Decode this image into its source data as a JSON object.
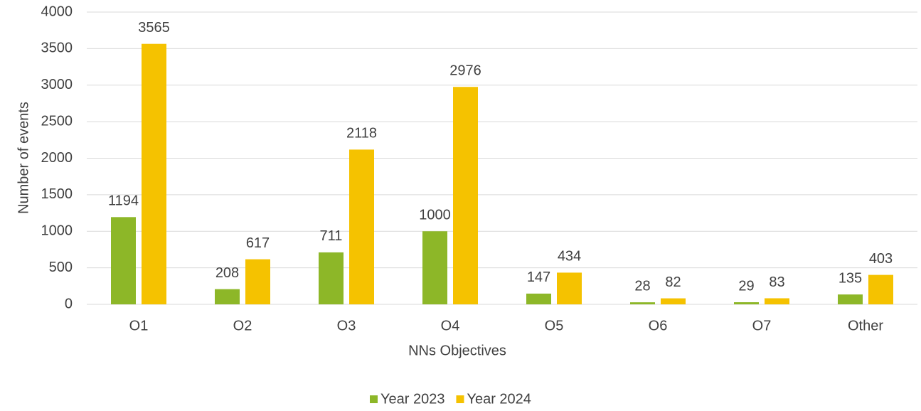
{
  "chart_data": {
    "type": "bar",
    "x_label": "NNs Objectives",
    "y_label": "Number of events",
    "categories": [
      "O1",
      "O2",
      "O3",
      "O4",
      "O5",
      "O6",
      "O7",
      "Other"
    ],
    "series": [
      {
        "name": "Year 2023",
        "color": "#8db728",
        "values": [
          1194,
          208,
          711,
          1000,
          147,
          28,
          29,
          135
        ]
      },
      {
        "name": "Year 2024",
        "color": "#f5c200",
        "values": [
          3565,
          617,
          2118,
          2976,
          434,
          82,
          83,
          403
        ]
      }
    ],
    "ylim": [
      0,
      4000
    ],
    "yticks": [
      0,
      500,
      1000,
      1500,
      2000,
      2500,
      3000,
      3500,
      4000
    ],
    "grid": true,
    "legend": "bottom"
  }
}
